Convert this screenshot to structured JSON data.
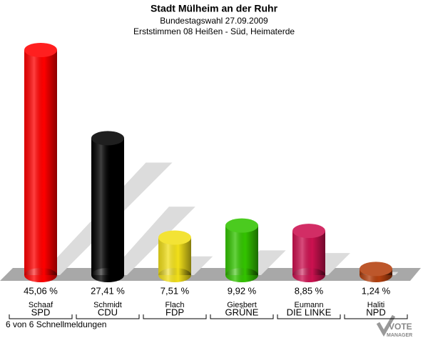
{
  "chart_data": {
    "type": "bar",
    "title": "Stadt Mülheim an der Ruhr",
    "subtitle": "Bundestagswahl 27.09.2009",
    "subtitle2": "Erststimmen 08 Heißen - Süd, Heimaterde",
    "categories": [
      "Schaaf",
      "Schmidt",
      "Flach",
      "Giesbert",
      "Eumann",
      "Haliti"
    ],
    "parties": [
      "SPD",
      "CDU",
      "FDP",
      "GRÜNE",
      "DIE LINKE",
      "NPD"
    ],
    "values": [
      45.06,
      27.41,
      7.51,
      9.92,
      8.85,
      1.24
    ],
    "value_labels": [
      "45,06 %",
      "27,41 %",
      "7,51 %",
      "9,92 %",
      "8,85 %",
      "1,24 %"
    ],
    "colors": [
      "#ff0000",
      "#000000",
      "#f2e01a",
      "#33c400",
      "#cc1150",
      "#b4400e"
    ],
    "footer": "6 von 6 Schnellmeldungen",
    "logo": {
      "line1": "VOTE",
      "line2": "MANAGER"
    }
  }
}
